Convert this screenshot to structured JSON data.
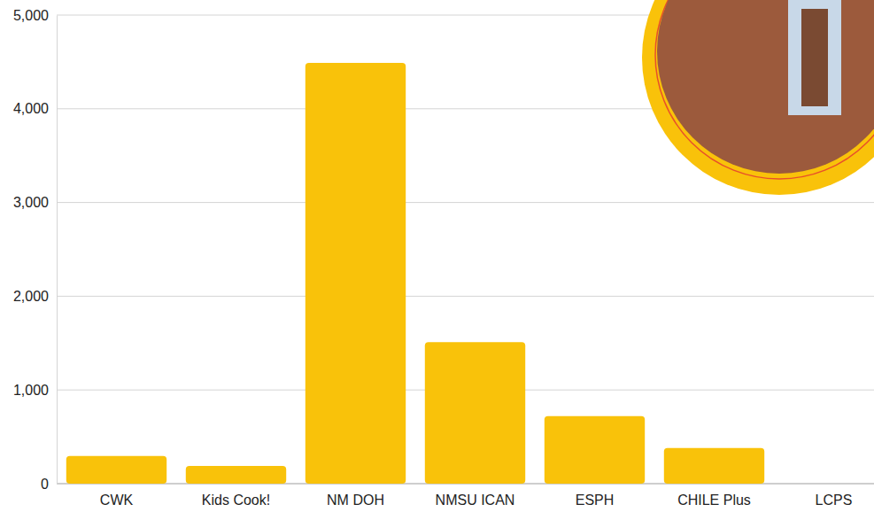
{
  "chart_data": {
    "type": "bar",
    "categories": [
      "CWK",
      "Kids Cook!",
      "NM DOH",
      "NMSU ICAN",
      "ESPH",
      "CHILE Plus",
      "LCPS"
    ],
    "values": [
      295,
      190,
      4490,
      1510,
      720,
      380,
      0
    ],
    "color": "#f9c20a",
    "ylim": [
      0,
      5000
    ],
    "yticks": [
      0,
      {
        "value": 1000,
        "label": "1,000"
      },
      {
        "value": 2000,
        "label": "2,000"
      },
      {
        "value": 3000,
        "label": "3,000"
      },
      {
        "value": 4000,
        "label": "4,000"
      },
      {
        "value": 5000,
        "label": "5,000"
      }
    ],
    "grid": true
  }
}
